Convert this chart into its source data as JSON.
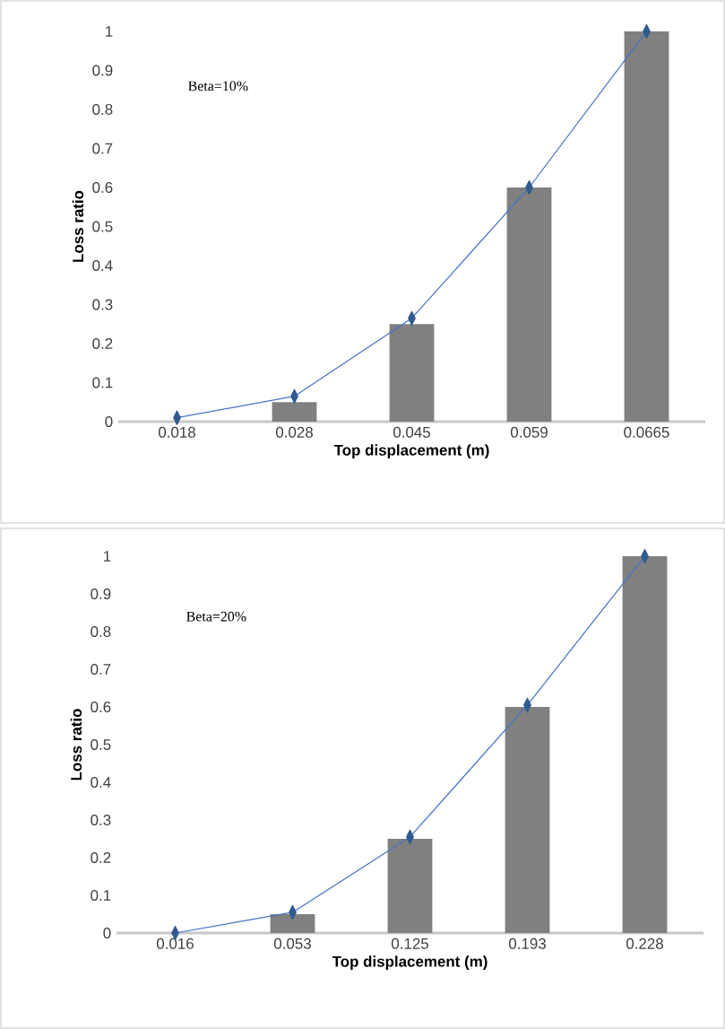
{
  "chart_data": [
    {
      "type": "bar",
      "xlabel": "Top displacement (m)",
      "ylabel": "Loss ratio",
      "annotations": [
        "Beta=10%"
      ],
      "categories": [
        "0.018",
        "0.028",
        "0.045",
        "0.059",
        "0.0665"
      ],
      "series": [
        {
          "color": "#808080",
          "values": [
            0,
            0.05,
            0.25,
            0.6,
            1
          ]
        },
        {
          "type": "line",
          "color": "#4472c4",
          "marker": "diamond",
          "values": [
            0.01,
            0.065,
            0.265,
            0.6,
            1
          ]
        }
      ],
      "ylim": [
        0,
        1
      ],
      "yticks": [
        0,
        0.1,
        0.2,
        0.3,
        0.4,
        0.5,
        0.6,
        0.7,
        0.8,
        0.9,
        1
      ]
    },
    {
      "type": "bar",
      "xlabel": "Top displacement (m)",
      "ylabel": "Loss ratio",
      "annotations": [
        "Beta=20%"
      ],
      "categories": [
        "0.016",
        "0.053",
        "0.125",
        "0.193",
        "0.228"
      ],
      "series": [
        {
          "color": "#808080",
          "values": [
            0,
            0.05,
            0.25,
            0.6,
            1
          ]
        },
        {
          "type": "line",
          "color": "#4472c4",
          "marker": "diamond",
          "values": [
            0,
            0.055,
            0.255,
            0.605,
            1
          ]
        }
      ],
      "ylim": [
        0,
        1
      ],
      "yticks": [
        0,
        0.1,
        0.2,
        0.3,
        0.4,
        0.5,
        0.6,
        0.7,
        0.8,
        0.9,
        1
      ]
    }
  ]
}
